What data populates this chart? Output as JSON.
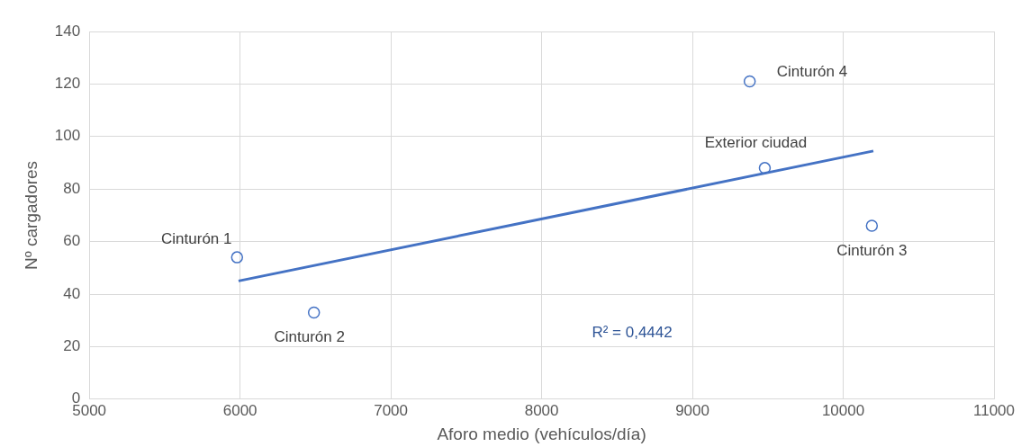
{
  "chart_data": {
    "type": "scatter",
    "xlabel": "Aforo medio (vehículos/día)",
    "ylabel": "Nº cargadores",
    "xlim": [
      5000,
      11000
    ],
    "xticks": [
      5000,
      6000,
      7000,
      8000,
      9000,
      10000,
      11000
    ],
    "ylim": [
      0,
      140
    ],
    "yticks": [
      0,
      20,
      40,
      60,
      80,
      100,
      120,
      140
    ],
    "grid": true,
    "legend": false,
    "series": [
      {
        "marker": "circle",
        "color": "#4472c4",
        "x": [
          5980,
          6490,
          10190,
          9380,
          9480
        ],
        "values": [
          54,
          33,
          66,
          121,
          88
        ]
      },
      {
        "type": "line",
        "color": "#4472c4",
        "x": [
          5990,
          10200
        ],
        "values": [
          45,
          94.5
        ]
      }
    ],
    "annotations": [
      {
        "text": "Cinturón 1",
        "x": 5980,
        "y": 54
      },
      {
        "text": "Cinturón 2",
        "x": 6490,
        "y": 33
      },
      {
        "text": "Cinturón 3",
        "x": 10190,
        "y": 66
      },
      {
        "text": "Cinturón 4",
        "x": 9380,
        "y": 121
      },
      {
        "text": "Exterior ciudad",
        "x": 9480,
        "y": 88
      },
      "R² = 0,4442"
    ]
  }
}
